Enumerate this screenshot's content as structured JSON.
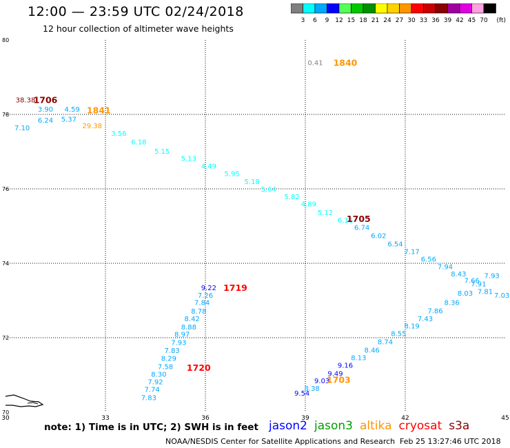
{
  "header": {
    "title": "12:00 — 23:59 UTC 02/24/2018",
    "subtitle": "12 hour collection of altimeter wave heights"
  },
  "legend": {
    "unit": "(ft)",
    "bins": [
      {
        "label": "3",
        "color": "#7f7f7f"
      },
      {
        "label": "6",
        "color": "#00ffff"
      },
      {
        "label": "9",
        "color": "#00a8ff"
      },
      {
        "label": "12",
        "color": "#0000ff"
      },
      {
        "label": "15",
        "color": "#55ff55"
      },
      {
        "label": "18",
        "color": "#00c800"
      },
      {
        "label": "21",
        "color": "#009000"
      },
      {
        "label": "24",
        "color": "#ffff00"
      },
      {
        "label": "27",
        "color": "#ffd200"
      },
      {
        "label": "30",
        "color": "#ff9600"
      },
      {
        "label": "33",
        "color": "#ff0000"
      },
      {
        "label": "36",
        "color": "#c80000"
      },
      {
        "label": "39",
        "color": "#8b0000"
      },
      {
        "label": "42",
        "color": "#a000a0"
      },
      {
        "label": "45",
        "color": "#e000e0"
      },
      {
        "label": "70",
        "color": "#ffa0e0"
      },
      {
        "label": "",
        "color": "#000000"
      }
    ]
  },
  "footer": {
    "note": "note: 1) Time is in UTC; 2) SWH is in feet",
    "credit": "NOAA/NESDIS Center for Satellite Applications and Research",
    "timestamp": "Feb 25 13:27:46 UTC 2018",
    "satellites": [
      {
        "name": "jason2",
        "color": "#0000ff"
      },
      {
        "name": "jason3",
        "color": "#00a000"
      },
      {
        "name": "altika",
        "color": "#ff9600"
      },
      {
        "name": "cryosat",
        "color": "#ff0000"
      },
      {
        "name": "s3a",
        "color": "#8b0000"
      }
    ]
  },
  "chart_data": {
    "type": "scatter",
    "xlim": [
      30,
      45
    ],
    "ylim": [
      70,
      80
    ],
    "x_ticks": [
      "30",
      "33",
      "36",
      "39",
      "42",
      "45"
    ],
    "y_ticks": [
      "70",
      "72",
      "74",
      "76",
      "78",
      "80"
    ],
    "grid": true,
    "colors": {
      "light": "#00ffff",
      "mid": "#00a8ff",
      "dark": "#0000ff",
      "grey": "#7f7f7f",
      "orange": "#ff9600",
      "red": "#ff0000",
      "maroon": "#8b0000"
    },
    "points": [
      {
        "x": 30.6,
        "y": 78.4,
        "v": "38.38",
        "c": "maroon"
      },
      {
        "x": 31.2,
        "y": 78.15,
        "v": "3.90",
        "c": "mid"
      },
      {
        "x": 31.2,
        "y": 77.85,
        "v": "6.24",
        "c": "mid"
      },
      {
        "x": 32.0,
        "y": 78.15,
        "v": "4.59",
        "c": "mid"
      },
      {
        "x": 31.9,
        "y": 77.88,
        "v": "5.37",
        "c": "mid"
      },
      {
        "x": 30.5,
        "y": 77.65,
        "v": "7.10",
        "c": "mid"
      },
      {
        "x": 32.6,
        "y": 77.7,
        "v": "29.38",
        "c": "orange"
      },
      {
        "x": 33.4,
        "y": 77.5,
        "v": "3.56",
        "c": "light"
      },
      {
        "x": 34.0,
        "y": 77.27,
        "v": "6.18",
        "c": "light"
      },
      {
        "x": 34.7,
        "y": 77.02,
        "v": "5.15",
        "c": "light"
      },
      {
        "x": 35.5,
        "y": 76.82,
        "v": "5.13",
        "c": "light"
      },
      {
        "x": 36.1,
        "y": 76.62,
        "v": "4.49",
        "c": "light"
      },
      {
        "x": 36.8,
        "y": 76.42,
        "v": "5.95",
        "c": "light"
      },
      {
        "x": 37.4,
        "y": 76.2,
        "v": "5.18",
        "c": "light"
      },
      {
        "x": 37.9,
        "y": 76.0,
        "v": "5.64",
        "c": "light"
      },
      {
        "x": 38.6,
        "y": 75.8,
        "v": "5.82",
        "c": "light"
      },
      {
        "x": 39.1,
        "y": 75.6,
        "v": "4.89",
        "c": "light"
      },
      {
        "x": 39.6,
        "y": 75.37,
        "v": "5.12",
        "c": "light"
      },
      {
        "x": 40.2,
        "y": 75.17,
        "v": "6.16",
        "c": "light"
      },
      {
        "x": 40.7,
        "y": 74.97,
        "v": "6.74",
        "c": "mid"
      },
      {
        "x": 41.2,
        "y": 74.75,
        "v": "6.02",
        "c": "mid"
      },
      {
        "x": 41.7,
        "y": 74.53,
        "v": "6.54",
        "c": "mid"
      },
      {
        "x": 42.2,
        "y": 74.32,
        "v": "7.17",
        "c": "mid"
      },
      {
        "x": 42.7,
        "y": 74.12,
        "v": "6.56",
        "c": "mid"
      },
      {
        "x": 43.2,
        "y": 73.92,
        "v": "7.94",
        "c": "mid"
      },
      {
        "x": 43.6,
        "y": 73.72,
        "v": "8.43",
        "c": "mid"
      },
      {
        "x": 44.0,
        "y": 73.55,
        "v": "7.66",
        "c": "mid"
      },
      {
        "x": 44.6,
        "y": 73.68,
        "v": "7.93",
        "c": "mid"
      },
      {
        "x": 44.2,
        "y": 73.45,
        "v": "7.91",
        "c": "mid"
      },
      {
        "x": 44.4,
        "y": 73.25,
        "v": "7.81",
        "c": "mid"
      },
      {
        "x": 44.9,
        "y": 73.15,
        "v": "7.03",
        "c": "mid"
      },
      {
        "x": 43.8,
        "y": 73.2,
        "v": "8.03",
        "c": "mid"
      },
      {
        "x": 43.4,
        "y": 72.95,
        "v": "8.36",
        "c": "mid"
      },
      {
        "x": 42.9,
        "y": 72.73,
        "v": "7.86",
        "c": "mid"
      },
      {
        "x": 42.6,
        "y": 72.52,
        "v": "7.43",
        "c": "mid"
      },
      {
        "x": 42.2,
        "y": 72.32,
        "v": "8.19",
        "c": "mid"
      },
      {
        "x": 41.8,
        "y": 72.12,
        "v": "8.55",
        "c": "mid"
      },
      {
        "x": 41.4,
        "y": 71.9,
        "v": "8.74",
        "c": "mid"
      },
      {
        "x": 41.0,
        "y": 71.68,
        "v": "8.46",
        "c": "mid"
      },
      {
        "x": 40.6,
        "y": 71.47,
        "v": "8.13",
        "c": "mid"
      },
      {
        "x": 40.2,
        "y": 71.27,
        "v": "9.16",
        "c": "dark"
      },
      {
        "x": 39.9,
        "y": 71.05,
        "v": "9.49",
        "c": "dark"
      },
      {
        "x": 39.5,
        "y": 70.85,
        "v": "9.03",
        "c": "dark"
      },
      {
        "x": 39.2,
        "y": 70.65,
        "v": "8.38",
        "c": "mid"
      },
      {
        "x": 38.9,
        "y": 70.52,
        "v": "9.54",
        "c": "dark"
      },
      {
        "x": 36.1,
        "y": 73.35,
        "v": "9.22",
        "c": "dark"
      },
      {
        "x": 36.0,
        "y": 73.15,
        "v": "7.26",
        "c": "mid"
      },
      {
        "x": 35.9,
        "y": 72.95,
        "v": "7.84",
        "c": "mid"
      },
      {
        "x": 35.8,
        "y": 72.72,
        "v": "8.78",
        "c": "mid"
      },
      {
        "x": 35.6,
        "y": 72.52,
        "v": "8.42",
        "c": "mid"
      },
      {
        "x": 35.5,
        "y": 72.3,
        "v": "8.88",
        "c": "mid"
      },
      {
        "x": 35.3,
        "y": 72.1,
        "v": "8.97",
        "c": "mid"
      },
      {
        "x": 35.2,
        "y": 71.88,
        "v": "7.93",
        "c": "mid"
      },
      {
        "x": 35.0,
        "y": 71.67,
        "v": "7.83",
        "c": "mid"
      },
      {
        "x": 34.9,
        "y": 71.45,
        "v": "8.29",
        "c": "mid"
      },
      {
        "x": 34.8,
        "y": 71.23,
        "v": "7.58",
        "c": "mid"
      },
      {
        "x": 34.6,
        "y": 71.03,
        "v": "8.30",
        "c": "mid"
      },
      {
        "x": 34.5,
        "y": 70.82,
        "v": "7.92",
        "c": "mid"
      },
      {
        "x": 34.4,
        "y": 70.62,
        "v": "7.74",
        "c": "mid"
      },
      {
        "x": 34.3,
        "y": 70.4,
        "v": "7.83",
        "c": "mid"
      },
      {
        "x": 39.3,
        "y": 79.4,
        "v": "0.41",
        "c": "grey"
      }
    ],
    "time_labels": [
      {
        "x": 31.2,
        "y": 78.4,
        "t": "1706",
        "c": "maroon"
      },
      {
        "x": 32.8,
        "y": 78.12,
        "t": "1841",
        "c": "orange"
      },
      {
        "x": 40.2,
        "y": 79.4,
        "t": "1840",
        "c": "orange"
      },
      {
        "x": 40.6,
        "y": 75.2,
        "t": "1705",
        "c": "maroon"
      },
      {
        "x": 36.9,
        "y": 73.35,
        "t": "1719",
        "c": "red"
      },
      {
        "x": 35.8,
        "y": 71.2,
        "t": "1720",
        "c": "red"
      },
      {
        "x": 40.0,
        "y": 70.88,
        "t": "1703",
        "c": "orange"
      }
    ]
  }
}
